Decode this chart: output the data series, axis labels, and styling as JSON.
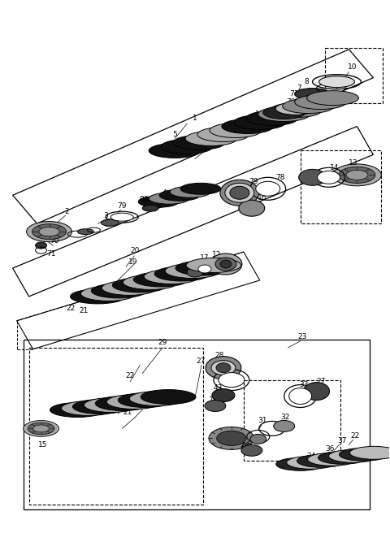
{
  "bg_color": "#ffffff",
  "fig_width": 4.8,
  "fig_height": 6.56,
  "dpi": 100
}
